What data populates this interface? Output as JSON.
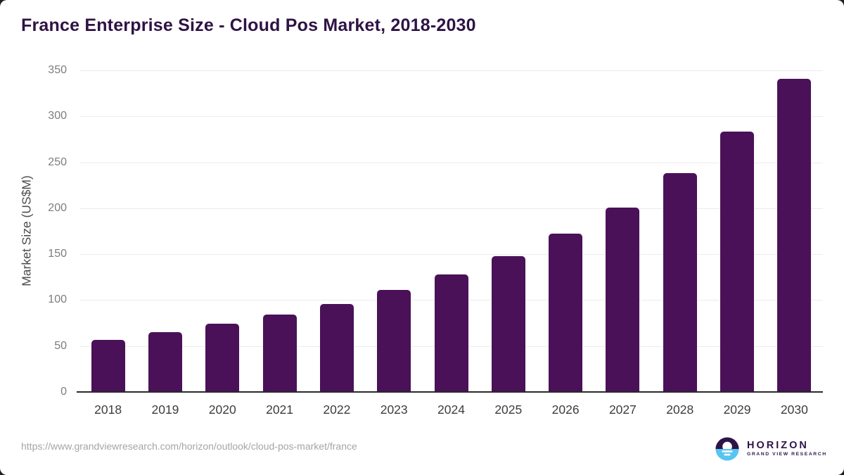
{
  "title": "France Enterprise Size - Cloud Pos Market, 2018-2030",
  "chart_data": {
    "type": "bar",
    "categories": [
      "2018",
      "2019",
      "2020",
      "2021",
      "2022",
      "2023",
      "2024",
      "2025",
      "2026",
      "2027",
      "2028",
      "2029",
      "2030"
    ],
    "values": [
      57,
      65,
      74,
      84,
      96,
      111,
      128,
      148,
      172,
      201,
      238,
      283,
      341
    ],
    "title": "France Enterprise Size - Cloud Pos Market, 2018-2030",
    "xlabel": "",
    "ylabel": "Market Size (US$M)",
    "ylim": [
      0,
      350
    ],
    "yticks": [
      0,
      50,
      100,
      150,
      200,
      250,
      300,
      350
    ],
    "grid": true,
    "legend": false,
    "bar_color": "#4a1158"
  },
  "colors": {
    "accent_bar": "#4a1158",
    "title_text": "#2e1345",
    "gridline": "#ececec",
    "axis_line": "#2a2a2a",
    "y_tick_text": "#7d7d7d",
    "x_label_text": "#3d3d3d",
    "url_text": "#a5a5a5",
    "logo_purple": "#2d1547",
    "logo_blue": "#56c5f2"
  },
  "footer": {
    "source_url": "https://www.grandviewresearch.com/horizon/outlook/cloud-pos-market/france",
    "logo_brand": "HORIZON",
    "logo_sub": "GRAND VIEW RESEARCH"
  }
}
